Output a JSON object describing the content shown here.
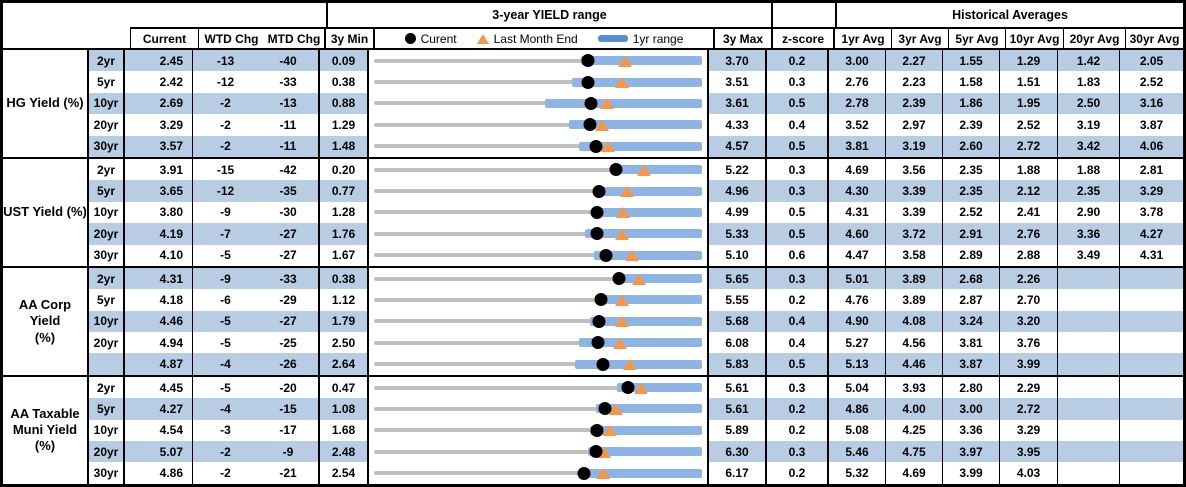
{
  "colors": {
    "stripe_blue": "#b8cce4",
    "range_bar_blue": "#8db4e2",
    "legend_bar_blue": "#558ed5",
    "marker_orange": "#f79646",
    "track_gray": "#bfbfbf",
    "border_black": "#000000"
  },
  "header": {
    "current": "Current",
    "wtd": "WTD Chg",
    "mtd": "MTD Chg",
    "min3y": "3y Min",
    "max3y": "3y Max",
    "zscore": "z-score",
    "chart_title": "3-year YIELD range",
    "hist_title": "Historical Averages",
    "avg_cols": [
      "1yr Avg",
      "3yr Avg",
      "5yr Avg",
      "10yr Avg",
      "20yr Avg",
      "30yr Avg"
    ],
    "legend": {
      "current": "Curent",
      "last_month_end": "Last Month End",
      "range_1yr": "1yr range"
    }
  },
  "chart_data": {
    "type": "table",
    "title": "3-year YIELD range",
    "note": "each row renders min-to-max track with 1yr-range bar (bar_low to 3y max), current dot, last-month-end triangle (current - mtd/100)",
    "groups": [
      {
        "label": "HG Yield (%)",
        "rows": [
          {
            "tenor": "2yr",
            "current": "2.45",
            "wtd": "-13",
            "mtd": "-40",
            "min": "0.09",
            "max": "3.70",
            "z": "0.2",
            "avgs": [
              "3.00",
              "2.27",
              "1.55",
              "1.29",
              "1.42",
              "2.05"
            ],
            "bar_low": 2.37
          },
          {
            "tenor": "5yr",
            "current": "2.42",
            "wtd": "-12",
            "mtd": "-33",
            "min": "0.38",
            "max": "3.51",
            "z": "0.3",
            "avgs": [
              "2.76",
              "2.23",
              "1.58",
              "1.51",
              "1.83",
              "2.52"
            ],
            "bar_low": 2.27
          },
          {
            "tenor": "10yr",
            "current": "2.69",
            "wtd": "-2",
            "mtd": "-13",
            "min": "0.88",
            "max": "3.61",
            "z": "0.5",
            "avgs": [
              "2.78",
              "2.39",
              "1.86",
              "1.95",
              "2.50",
              "3.16"
            ],
            "bar_low": 2.3
          },
          {
            "tenor": "20yr",
            "current": "3.29",
            "wtd": "-2",
            "mtd": "-11",
            "min": "1.29",
            "max": "4.33",
            "z": "0.4",
            "avgs": [
              "3.52",
              "2.97",
              "2.39",
              "2.52",
              "3.19",
              "3.87"
            ],
            "bar_low": 3.1
          },
          {
            "tenor": "30yr",
            "current": "3.57",
            "wtd": "-2",
            "mtd": "-11",
            "min": "1.48",
            "max": "4.57",
            "z": "0.5",
            "avgs": [
              "3.81",
              "3.19",
              "2.60",
              "2.72",
              "3.42",
              "4.06"
            ],
            "bar_low": 3.41
          }
        ]
      },
      {
        "label": "UST Yield (%)",
        "rows": [
          {
            "tenor": "2yr",
            "current": "3.91",
            "wtd": "-15",
            "mtd": "-42",
            "min": "0.20",
            "max": "5.22",
            "z": "0.3",
            "avgs": [
              "4.69",
              "3.56",
              "2.35",
              "1.88",
              "1.88",
              "2.81"
            ],
            "bar_low": 3.85
          },
          {
            "tenor": "5yr",
            "current": "3.65",
            "wtd": "-12",
            "mtd": "-35",
            "min": "0.77",
            "max": "4.96",
            "z": "0.3",
            "avgs": [
              "4.30",
              "3.39",
              "2.35",
              "2.12",
              "2.35",
              "3.29"
            ],
            "bar_low": 3.6
          },
          {
            "tenor": "10yr",
            "current": "3.80",
            "wtd": "-9",
            "mtd": "-30",
            "min": "1.28",
            "max": "4.99",
            "z": "0.5",
            "avgs": [
              "4.31",
              "3.39",
              "2.52",
              "2.41",
              "2.90",
              "3.78"
            ],
            "bar_low": 3.75
          },
          {
            "tenor": "20yr",
            "current": "4.19",
            "wtd": "-7",
            "mtd": "-27",
            "min": "1.76",
            "max": "5.33",
            "z": "0.5",
            "avgs": [
              "4.60",
              "3.72",
              "2.91",
              "2.76",
              "3.36",
              "4.27"
            ],
            "bar_low": 4.06
          },
          {
            "tenor": "30yr",
            "current": "4.10",
            "wtd": "-5",
            "mtd": "-27",
            "min": "1.67",
            "max": "5.10",
            "z": "0.6",
            "avgs": [
              "4.47",
              "3.58",
              "2.89",
              "2.88",
              "3.49",
              "4.31"
            ],
            "bar_low": 3.97
          }
        ]
      },
      {
        "label": "AA Corp Yield\n(%)",
        "rows": [
          {
            "tenor": "2yr",
            "current": "4.31",
            "wtd": "-9",
            "mtd": "-33",
            "min": "0.38",
            "max": "5.65",
            "z": "0.3",
            "avgs": [
              "5.01",
              "3.89",
              "2.68",
              "2.26",
              "",
              ""
            ],
            "bar_low": 4.23
          },
          {
            "tenor": "5yr",
            "current": "4.18",
            "wtd": "-6",
            "mtd": "-29",
            "min": "1.12",
            "max": "5.55",
            "z": "0.2",
            "avgs": [
              "4.76",
              "3.89",
              "2.87",
              "2.70",
              "",
              ""
            ],
            "bar_low": 4.16
          },
          {
            "tenor": "10yr",
            "current": "4.46",
            "wtd": "-5",
            "mtd": "-27",
            "min": "1.79",
            "max": "5.68",
            "z": "0.4",
            "avgs": [
              "4.90",
              "4.08",
              "3.24",
              "3.20",
              "",
              ""
            ],
            "bar_low": 4.35
          },
          {
            "tenor": "20yr",
            "current": "4.94",
            "wtd": "-5",
            "mtd": "-25",
            "min": "2.50",
            "max": "6.08",
            "z": "0.4",
            "avgs": [
              "5.27",
              "4.56",
              "3.81",
              "3.76",
              "",
              ""
            ],
            "bar_low": 4.74
          },
          {
            "tenor": "",
            "current": "4.87",
            "wtd": "-4",
            "mtd": "-26",
            "min": "2.64",
            "max": "5.83",
            "z": "0.5",
            "avgs": [
              "5.13",
              "4.46",
              "3.87",
              "3.99",
              "",
              ""
            ],
            "bar_low": 4.59
          }
        ]
      },
      {
        "label": "AA Taxable\nMuni Yield\n(%)",
        "rows": [
          {
            "tenor": "2yr",
            "current": "4.45",
            "wtd": "-5",
            "mtd": "-20",
            "min": "0.47",
            "max": "5.61",
            "z": "0.3",
            "avgs": [
              "5.04",
              "3.93",
              "2.80",
              "2.29",
              "",
              ""
            ],
            "bar_low": 4.28
          },
          {
            "tenor": "5yr",
            "current": "4.27",
            "wtd": "-4",
            "mtd": "-15",
            "min": "1.08",
            "max": "5.61",
            "z": "0.2",
            "avgs": [
              "4.86",
              "4.00",
              "3.00",
              "2.72",
              "",
              ""
            ],
            "bar_low": 4.14
          },
          {
            "tenor": "10yr",
            "current": "4.54",
            "wtd": "-3",
            "mtd": "-17",
            "min": "1.68",
            "max": "5.89",
            "z": "0.2",
            "avgs": [
              "5.08",
              "4.25",
              "3.36",
              "3.29",
              "",
              ""
            ],
            "bar_low": 4.45
          },
          {
            "tenor": "20yr",
            "current": "5.07",
            "wtd": "-2",
            "mtd": "-9",
            "min": "2.48",
            "max": "6.30",
            "z": "0.3",
            "avgs": [
              "5.46",
              "4.75",
              "3.97",
              "3.95",
              "",
              ""
            ],
            "bar_low": 4.97
          },
          {
            "tenor": "30yr",
            "current": "4.86",
            "wtd": "-2",
            "mtd": "-21",
            "min": "2.54",
            "max": "6.17",
            "z": "0.2",
            "avgs": [
              "5.32",
              "4.69",
              "3.99",
              "4.03",
              "",
              ""
            ],
            "bar_low": 4.81
          }
        ]
      }
    ]
  }
}
